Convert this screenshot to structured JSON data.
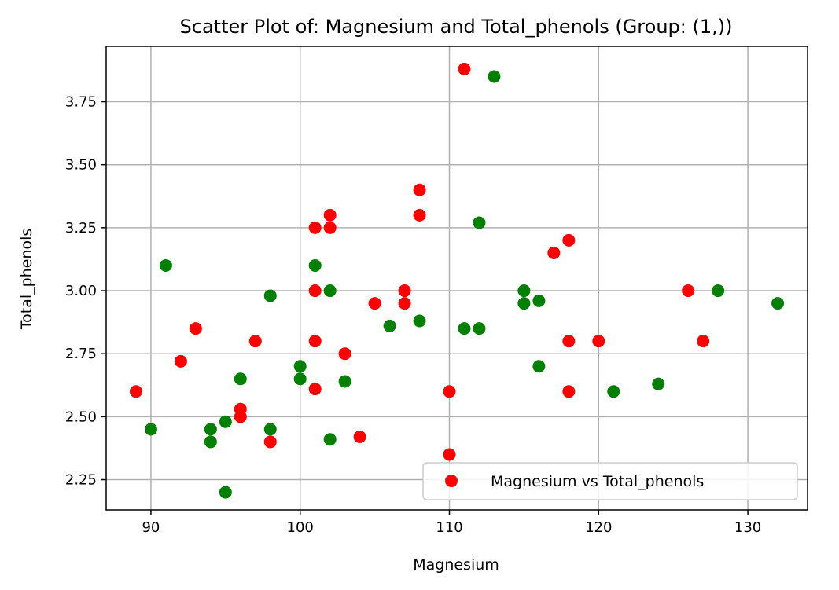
{
  "chart_data": {
    "type": "scatter",
    "title": "Scatter Plot of: Magnesium and Total_phenols (Group: (1,))",
    "xlabel": "Magnesium",
    "ylabel": "Total_phenols",
    "xlim": [
      87,
      134
    ],
    "ylim": [
      2.13,
      3.97
    ],
    "xticks": [
      90,
      100,
      110,
      120,
      130
    ],
    "xtick_labels": [
      "90",
      "100",
      "110",
      "120",
      "130"
    ],
    "yticks": [
      2.25,
      2.5,
      2.75,
      3.0,
      3.25,
      3.5,
      3.75
    ],
    "ytick_labels": [
      "2.25",
      "2.50",
      "2.75",
      "3.00",
      "3.25",
      "3.50",
      "3.75"
    ],
    "grid": true,
    "legend_position": "bottom-right",
    "legend_label": "Magnesium vs Total_phenols",
    "series": [
      {
        "name": "Magnesium vs Total_phenols",
        "color": "#ff0000",
        "points": [
          [
            89,
            2.6
          ],
          [
            92,
            2.72
          ],
          [
            93,
            2.85
          ],
          [
            96,
            2.53
          ],
          [
            96,
            2.5
          ],
          [
            97,
            2.8
          ],
          [
            98,
            2.4
          ],
          [
            101,
            3.25
          ],
          [
            101,
            3.0
          ],
          [
            101,
            2.8
          ],
          [
            101,
            2.61
          ],
          [
            102,
            3.3
          ],
          [
            102,
            3.25
          ],
          [
            103,
            2.75
          ],
          [
            104,
            2.42
          ],
          [
            105,
            2.95
          ],
          [
            107,
            3.0
          ],
          [
            107,
            2.95
          ],
          [
            108,
            3.4
          ],
          [
            108,
            3.3
          ],
          [
            110,
            2.6
          ],
          [
            110,
            2.35
          ],
          [
            111,
            3.88
          ],
          [
            117,
            3.15
          ],
          [
            118,
            3.2
          ],
          [
            118,
            2.8
          ],
          [
            118,
            2.6
          ],
          [
            120,
            2.8
          ],
          [
            126,
            3.0
          ],
          [
            127,
            2.8
          ]
        ]
      },
      {
        "color": "#008000",
        "points": [
          [
            90,
            2.45
          ],
          [
            91,
            3.1
          ],
          [
            94,
            2.45
          ],
          [
            94,
            2.4
          ],
          [
            95,
            2.48
          ],
          [
            95,
            2.2
          ],
          [
            96,
            2.65
          ],
          [
            98,
            2.98
          ],
          [
            98,
            2.45
          ],
          [
            100,
            2.7
          ],
          [
            100,
            2.65
          ],
          [
            101,
            3.1
          ],
          [
            102,
            3.0
          ],
          [
            102,
            2.41
          ],
          [
            103,
            2.64
          ],
          [
            106,
            2.86
          ],
          [
            108,
            2.88
          ],
          [
            111,
            2.85
          ],
          [
            112,
            3.27
          ],
          [
            112,
            2.85
          ],
          [
            113,
            3.85
          ],
          [
            115,
            3.0
          ],
          [
            115,
            2.95
          ],
          [
            116,
            2.96
          ],
          [
            116,
            2.7
          ],
          [
            121,
            2.6
          ],
          [
            124,
            2.63
          ],
          [
            128,
            3.0
          ],
          [
            132,
            2.95
          ]
        ]
      }
    ]
  }
}
